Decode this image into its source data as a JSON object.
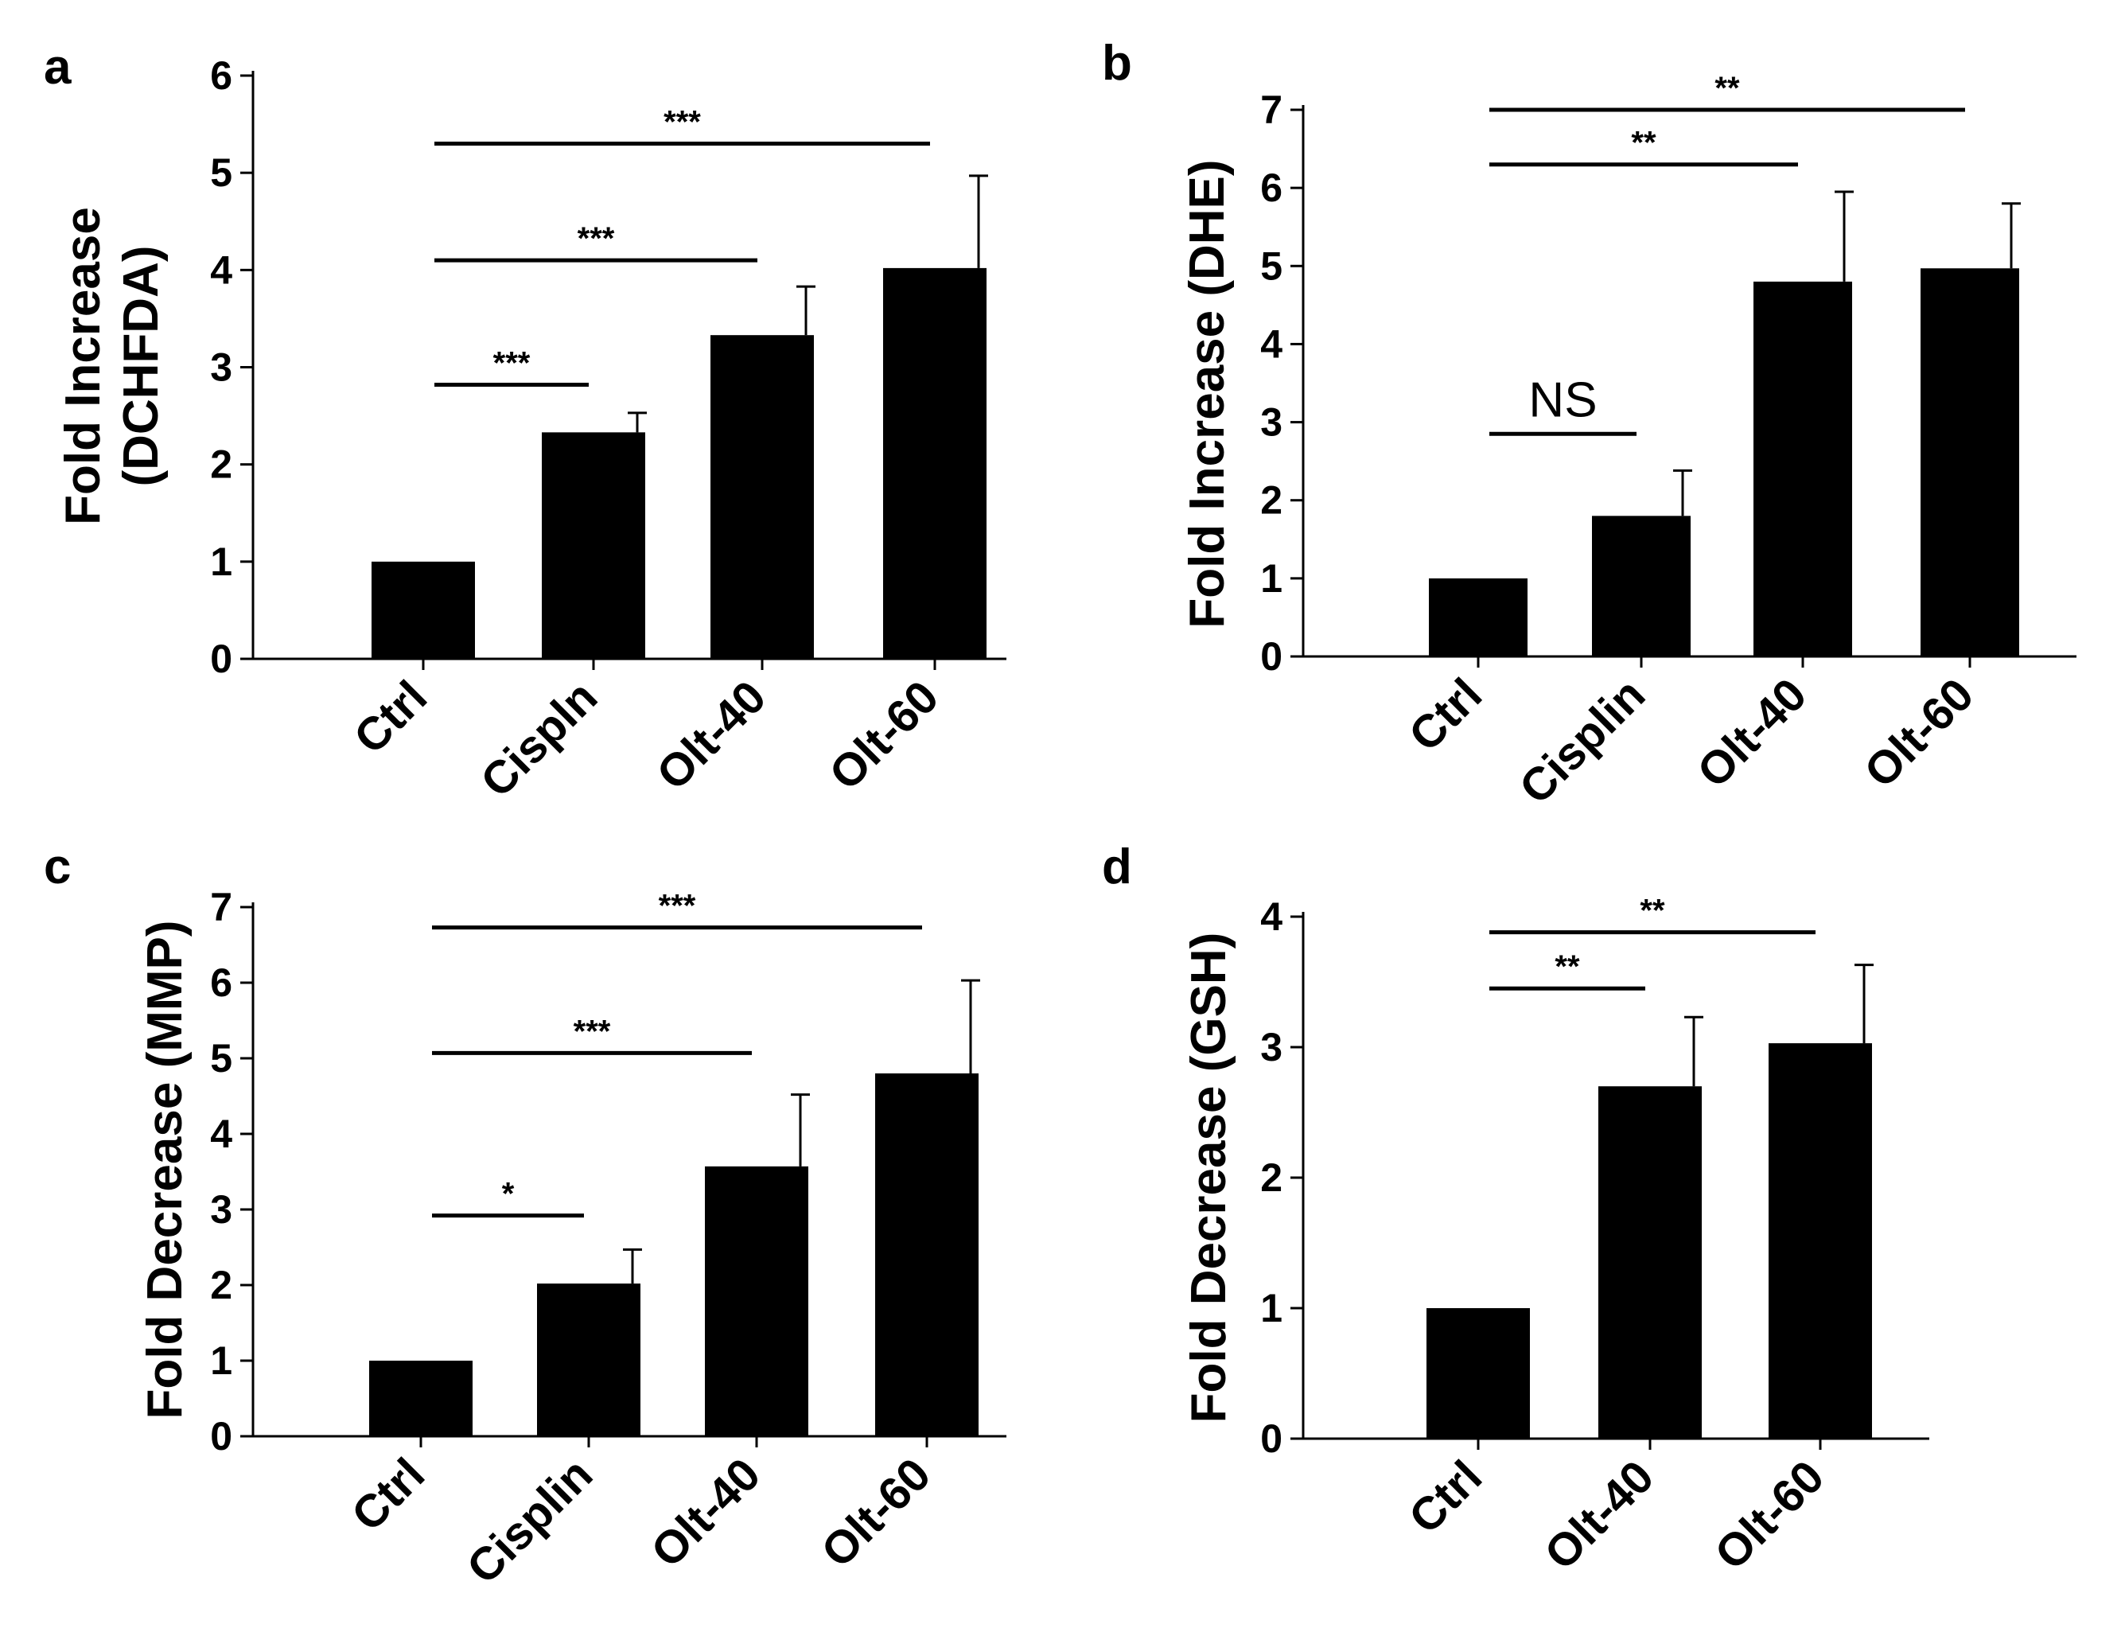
{
  "chart_data": [
    {
      "panel": "a",
      "type": "bar",
      "ylabel_line1": "Fold Increase",
      "ylabel_line2": "(DCHFDA)",
      "categories": [
        "Ctrl",
        "Cispln",
        "Olt-40",
        "Olt-60"
      ],
      "values": [
        1.0,
        2.33,
        3.33,
        4.02
      ],
      "errors": [
        0,
        0.2,
        0.5,
        0.95
      ],
      "ylim": [
        0,
        6
      ],
      "yticks": [
        "0",
        "1",
        "2",
        "3",
        "4",
        "5",
        "6"
      ],
      "significance": [
        {
          "from": 0,
          "to": 1,
          "y": 2.82,
          "label": "***"
        },
        {
          "from": 0,
          "to": 2,
          "y": 4.1,
          "label": "***"
        },
        {
          "from": 0,
          "to": 3,
          "y": 5.3,
          "label": "***"
        }
      ]
    },
    {
      "panel": "b",
      "type": "bar",
      "ylabel_line1": "Fold Increase (DHE)",
      "categories": [
        "Ctrl",
        "Cisplin",
        "Olt-40",
        "Olt-60"
      ],
      "values": [
        1.0,
        1.8,
        4.8,
        4.97
      ],
      "errors": [
        0,
        0.58,
        1.15,
        0.83
      ],
      "ylim": [
        0,
        7
      ],
      "yticks": [
        "0",
        "1",
        "2",
        "3",
        "4",
        "5",
        "6",
        "7"
      ],
      "significance": [
        {
          "from": 0,
          "to": 1,
          "y": 2.85,
          "label": "NS"
        },
        {
          "from": 0,
          "to": 2,
          "y": 6.3,
          "label": "**"
        },
        {
          "from": 0,
          "to": 3,
          "y": 7.0,
          "label": "**"
        }
      ]
    },
    {
      "panel": "c",
      "type": "bar",
      "ylabel_line1": "Fold Decrease (MMP)",
      "categories": [
        "Ctrl",
        "Cisplin",
        "Olt-40",
        "Olt-60"
      ],
      "values": [
        1.0,
        2.02,
        3.57,
        4.8
      ],
      "errors": [
        0,
        0.45,
        0.95,
        1.23
      ],
      "ylim": [
        0,
        7
      ],
      "yticks": [
        "0",
        "1",
        "2",
        "3",
        "4",
        "5",
        "6",
        "7"
      ],
      "significance": [
        {
          "from": 0,
          "to": 1,
          "y": 2.92,
          "label": "*"
        },
        {
          "from": 0,
          "to": 2,
          "y": 5.07,
          "label": "***"
        },
        {
          "from": 0,
          "to": 3,
          "y": 6.73,
          "label": "***"
        }
      ]
    },
    {
      "panel": "d",
      "type": "bar",
      "ylabel_line1": "Fold Decrease (GSH)",
      "categories": [
        "Ctrl",
        "Olt-40",
        "Olt-60"
      ],
      "values": [
        1.0,
        2.7,
        3.03
      ],
      "errors": [
        0,
        0.53,
        0.6
      ],
      "ylim": [
        0,
        4
      ],
      "yticks": [
        "0",
        "1",
        "2",
        "3",
        "4"
      ],
      "significance": [
        {
          "from": 0,
          "to": 1,
          "y": 3.45,
          "label": "**"
        },
        {
          "from": 0,
          "to": 2,
          "y": 3.88,
          "label": "**"
        }
      ]
    }
  ]
}
